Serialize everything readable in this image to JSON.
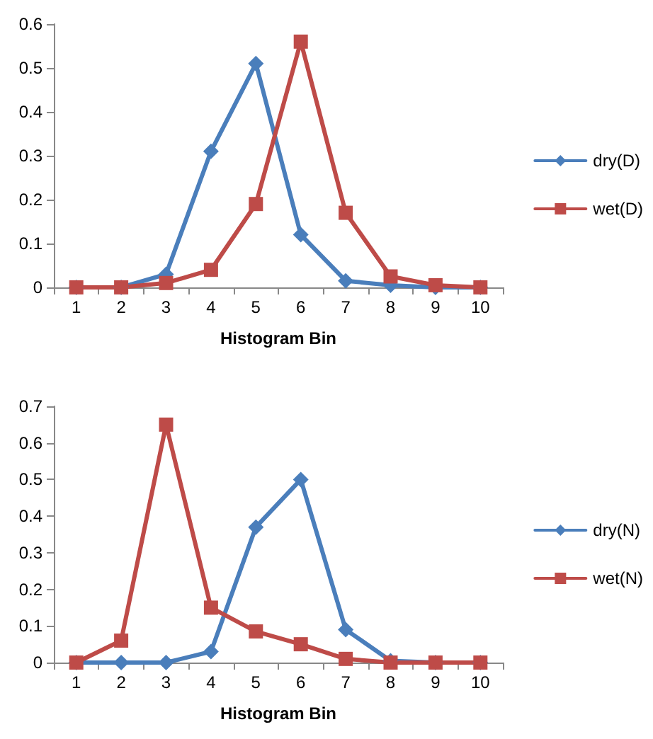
{
  "chart_data": [
    {
      "type": "line",
      "xlabel": "Histogram Bin",
      "categories": [
        "1",
        "2",
        "3",
        "4",
        "5",
        "6",
        "7",
        "8",
        "9",
        "10"
      ],
      "ylim": [
        0,
        0.6
      ],
      "yticks": [
        0,
        0.1,
        0.2,
        0.3,
        0.4,
        0.5,
        0.6
      ],
      "grid": false,
      "legend": "right",
      "line_style": "solid",
      "series": [
        {
          "name": "dry(D)",
          "color": "#4a7ebb",
          "marker": "diamond",
          "values": [
            0,
            0,
            0.03,
            0.31,
            0.51,
            0.12,
            0.015,
            0.005,
            0,
            0
          ]
        },
        {
          "name": "wet(D)",
          "color": "#be4b48",
          "marker": "square",
          "values": [
            0,
            0,
            0.01,
            0.04,
            0.19,
            0.56,
            0.17,
            0.025,
            0.005,
            0
          ]
        }
      ]
    },
    {
      "type": "line",
      "xlabel": "Histogram Bin",
      "categories": [
        "1",
        "2",
        "3",
        "4",
        "5",
        "6",
        "7",
        "8",
        "9",
        "10"
      ],
      "ylim": [
        0,
        0.7
      ],
      "yticks": [
        0,
        0.1,
        0.2,
        0.3,
        0.4,
        0.5,
        0.6,
        0.7
      ],
      "grid": false,
      "legend": "right",
      "line_style": "solid",
      "series": [
        {
          "name": "dry(N)",
          "color": "#4a7ebb",
          "marker": "diamond",
          "values": [
            0,
            0,
            0,
            0.03,
            0.37,
            0.5,
            0.09,
            0.005,
            0,
            0
          ]
        },
        {
          "name": "wet(N)",
          "color": "#be4b48",
          "marker": "square",
          "values": [
            0,
            0.06,
            0.65,
            0.15,
            0.085,
            0.05,
            0.01,
            0,
            0,
            0
          ]
        }
      ]
    }
  ]
}
